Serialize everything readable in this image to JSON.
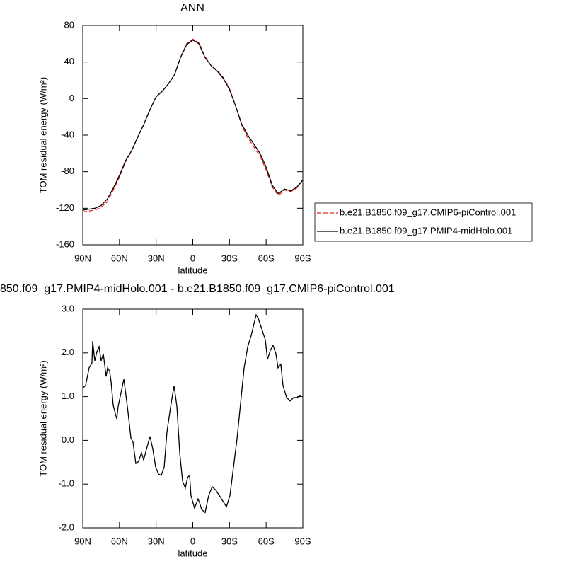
{
  "chart_data": [
    {
      "type": "line",
      "title": "ANN",
      "xlabel": "latitude",
      "ylabel": "TOM residual energy (W/m²)",
      "x": [
        90,
        85,
        80,
        75,
        70,
        65,
        60,
        55,
        50,
        45,
        40,
        35,
        30,
        25,
        20,
        15,
        10,
        5,
        0,
        -5,
        -10,
        -15,
        -20,
        -25,
        -30,
        -35,
        -40,
        -45,
        -50,
        -55,
        -60,
        -65,
        -70,
        -75,
        -80,
        -85,
        -90
      ],
      "series": [
        {
          "name": "b.e21.B1850.f09_g17.CMIP6-piControl.001",
          "color": "#e8231e",
          "line_style": "dashed",
          "values": [
            -124,
            -123,
            -122,
            -119,
            -113,
            -100,
            -86,
            -69,
            -57,
            -42,
            -28,
            -12,
            2,
            8,
            16,
            26,
            45,
            60,
            65,
            61,
            46,
            36,
            31,
            23,
            11,
            -8,
            -29,
            -43,
            -53,
            -63,
            -78,
            -97,
            -106,
            -100,
            -102,
            -98,
            -89
          ]
        },
        {
          "name": "b.e21.B1850.f09_g17.PMIP4-midHolo.001",
          "color": "#000000",
          "line_style": "solid",
          "values": [
            -122,
            -121,
            -120,
            -117,
            -110,
            -98,
            -84,
            -68,
            -57,
            -42,
            -28,
            -12,
            2,
            8,
            16,
            26,
            45,
            59,
            64,
            60,
            45,
            36,
            30,
            22,
            10,
            -8,
            -28,
            -40,
            -50,
            -60,
            -75,
            -95,
            -104,
            -99,
            -101,
            -97,
            -89
          ]
        }
      ],
      "xlim": [
        90,
        -90
      ],
      "xticks": [
        {
          "value": 90,
          "label": "90N"
        },
        {
          "value": 60,
          "label": "60N"
        },
        {
          "value": 30,
          "label": "30N"
        },
        0,
        {
          "value": -30,
          "label": "30S"
        },
        {
          "value": -60,
          "label": "60S"
        },
        {
          "value": -90,
          "label": "90S"
        }
      ],
      "ylim": [
        -160,
        80
      ],
      "yticks": [
        80,
        40,
        0,
        -40,
        -80,
        -120,
        -160
      ],
      "legend": "right"
    },
    {
      "type": "line",
      "title": "850.f09_g17.PMIP4-midHolo.001 - b.e21.B1850.f09_g17.CMIP6-piControl.001",
      "xlabel": "latitude",
      "ylabel": "TOM residual energy (W/m²)",
      "x": [
        90,
        87.7,
        84.8,
        82.5,
        81.9,
        80.2,
        78.4,
        76.7,
        75.0,
        73.2,
        70.9,
        69.7,
        68.0,
        66.8,
        65.1,
        62.2,
        61.1,
        59.3,
        56.4,
        53.5,
        50.6,
        48.9,
        46.6,
        44.3,
        42.0,
        40.2,
        37.9,
        35.0,
        32.7,
        30.4,
        28.1,
        25.8,
        23.4,
        21.1,
        17.7,
        15.3,
        13.0,
        10.7,
        8.4,
        6.1,
        4.3,
        2.6,
        1.5,
        -1.4,
        -4.3,
        -5.5,
        -7.2,
        -10.1,
        -13.0,
        -15.9,
        -18.8,
        -21.7,
        -24.6,
        -27.5,
        -30.4,
        -33.3,
        -36.2,
        -39.1,
        -42.0,
        -44.9,
        -47.7,
        -51.8,
        -53.5,
        -56.4,
        -59.3,
        -61.1,
        -63.4,
        -65.7,
        -68.0,
        -69.7,
        -72.0,
        -73.8,
        -76.7,
        -79.6,
        -82.5,
        -85.4,
        -88.3
      ],
      "series": [
        {
          "color": "#000000",
          "line_style": "solid",
          "values": [
            1.2,
            1.25,
            1.66,
            1.77,
            2.27,
            1.82,
            2.03,
            2.14,
            1.82,
            1.98,
            1.46,
            1.66,
            1.58,
            1.33,
            0.8,
            0.49,
            0.77,
            1.01,
            1.4,
            0.77,
            0.05,
            -0.04,
            -0.53,
            -0.48,
            -0.28,
            -0.45,
            -0.2,
            0.09,
            -0.2,
            -0.61,
            -0.77,
            -0.8,
            -0.61,
            0.2,
            0.85,
            1.25,
            0.77,
            -0.28,
            -0.93,
            -1.09,
            -0.85,
            -0.8,
            -1.26,
            -1.55,
            -1.34,
            -1.42,
            -1.58,
            -1.65,
            -1.26,
            -1.06,
            -1.14,
            -1.26,
            -1.39,
            -1.52,
            -1.26,
            -0.61,
            0.04,
            0.85,
            1.66,
            2.14,
            2.39,
            2.87,
            2.79,
            2.55,
            2.3,
            1.85,
            2.06,
            2.17,
            1.98,
            1.66,
            1.74,
            1.25,
            0.98,
            0.9,
            0.98,
            0.98,
            1.03
          ]
        }
      ],
      "xlim": [
        90,
        -90
      ],
      "xticks": [
        {
          "value": 90,
          "label": "90N"
        },
        {
          "value": 60,
          "label": "60N"
        },
        {
          "value": 30,
          "label": "30N"
        },
        0,
        {
          "value": -30,
          "label": "30S"
        },
        {
          "value": -60,
          "label": "60S"
        },
        {
          "value": -90,
          "label": "90S"
        }
      ],
      "ylim": [
        -2,
        3
      ],
      "yticks": [
        {
          "value": 3,
          "label": "3.0"
        },
        {
          "value": 2,
          "label": "2.0"
        },
        {
          "value": 1,
          "label": "1.0"
        },
        {
          "value": 0,
          "label": "0.0"
        },
        {
          "value": -1,
          "label": "-1.0"
        },
        {
          "value": -2,
          "label": "-2.0"
        }
      ]
    }
  ]
}
